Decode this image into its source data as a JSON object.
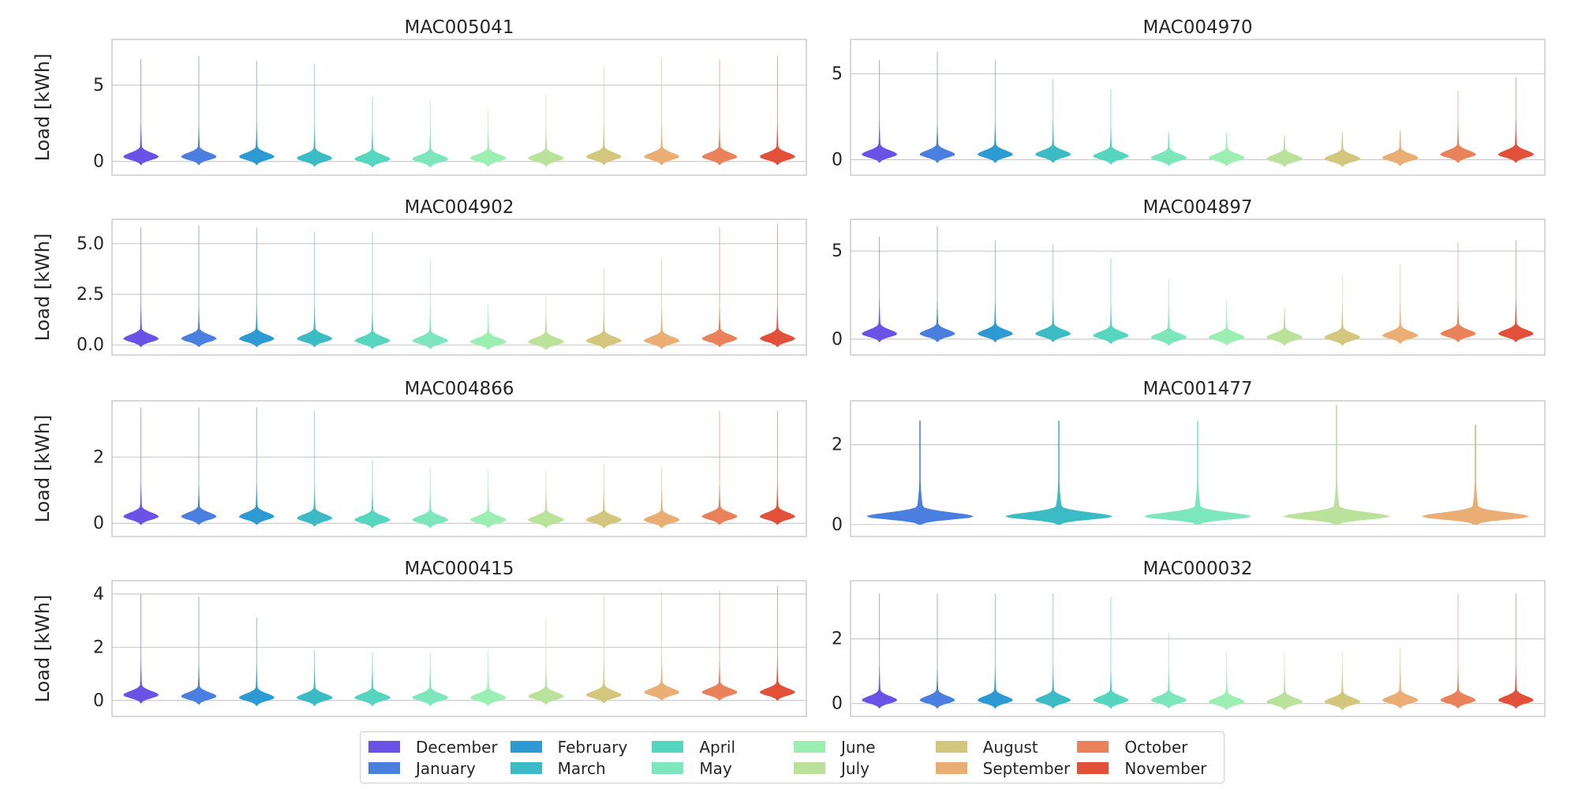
{
  "chart_data": [
    {
      "type": "violin",
      "title": "MAC005041",
      "ylabel": "Load [kWh]",
      "ylim": [
        -0.9,
        8.0
      ],
      "yticks": [
        0,
        5
      ],
      "ytick_labels": [
        "0",
        "5"
      ],
      "categories": [
        "December",
        "January",
        "February",
        "March",
        "April",
        "May",
        "June",
        "July",
        "August",
        "September",
        "October",
        "November"
      ],
      "max_values": [
        6.7,
        6.9,
        6.6,
        6.4,
        4.2,
        4.0,
        3.4,
        4.4,
        6.3,
        6.8,
        6.7,
        6.9
      ],
      "median_values": [
        0.3,
        0.3,
        0.3,
        0.2,
        0.15,
        0.15,
        0.2,
        0.2,
        0.3,
        0.3,
        0.3,
        0.3
      ]
    },
    {
      "type": "violin",
      "title": "MAC004970",
      "ylabel": "",
      "ylim": [
        -0.9,
        7.0
      ],
      "yticks": [
        0,
        5
      ],
      "ytick_labels": [
        "0",
        "5"
      ],
      "categories": [
        "December",
        "January",
        "February",
        "March",
        "April",
        "May",
        "June",
        "July",
        "August",
        "September",
        "October",
        "November"
      ],
      "max_values": [
        5.8,
        6.3,
        5.8,
        4.7,
        4.1,
        1.6,
        1.6,
        1.4,
        1.6,
        1.7,
        4.0,
        4.8
      ],
      "median_values": [
        0.3,
        0.3,
        0.3,
        0.3,
        0.2,
        0.1,
        0.1,
        0.05,
        0.05,
        0.1,
        0.3,
        0.3
      ]
    },
    {
      "type": "violin",
      "title": "MAC004902",
      "ylabel": "Load [kWh]",
      "ylim": [
        -0.5,
        6.2
      ],
      "yticks": [
        0,
        2.5,
        5
      ],
      "ytick_labels": [
        "0.0",
        "2.5",
        "5.0"
      ],
      "categories": [
        "December",
        "January",
        "February",
        "March",
        "April",
        "May",
        "June",
        "July",
        "August",
        "September",
        "October",
        "November"
      ],
      "max_values": [
        5.8,
        5.9,
        5.8,
        5.6,
        5.6,
        4.2,
        2.0,
        2.4,
        3.8,
        4.2,
        5.8,
        6.0
      ],
      "median_values": [
        0.3,
        0.3,
        0.3,
        0.3,
        0.2,
        0.2,
        0.15,
        0.15,
        0.2,
        0.2,
        0.3,
        0.3
      ]
    },
    {
      "type": "violin",
      "title": "MAC004897",
      "ylabel": "",
      "ylim": [
        -0.9,
        6.8
      ],
      "yticks": [
        0,
        5
      ],
      "ytick_labels": [
        "0",
        "5"
      ],
      "categories": [
        "December",
        "January",
        "February",
        "March",
        "April",
        "May",
        "June",
        "July",
        "August",
        "September",
        "October",
        "November"
      ],
      "max_values": [
        5.8,
        6.4,
        5.6,
        5.4,
        4.6,
        3.4,
        2.2,
        1.8,
        3.6,
        4.2,
        5.5,
        5.6
      ],
      "median_values": [
        0.3,
        0.3,
        0.3,
        0.3,
        0.2,
        0.1,
        0.1,
        0.1,
        0.1,
        0.2,
        0.3,
        0.3
      ]
    },
    {
      "type": "violin",
      "title": "MAC004866",
      "ylabel": "Load [kWh]",
      "ylim": [
        -0.4,
        3.7
      ],
      "yticks": [
        0,
        2
      ],
      "ytick_labels": [
        "0",
        "2"
      ],
      "categories": [
        "December",
        "January",
        "February",
        "March",
        "April",
        "May",
        "June",
        "July",
        "August",
        "September",
        "October",
        "November"
      ],
      "max_values": [
        3.5,
        3.5,
        3.5,
        3.4,
        1.9,
        1.7,
        1.6,
        1.6,
        1.8,
        1.7,
        3.4,
        3.4
      ],
      "median_values": [
        0.2,
        0.2,
        0.2,
        0.15,
        0.1,
        0.1,
        0.1,
        0.1,
        0.1,
        0.1,
        0.2,
        0.2
      ]
    },
    {
      "type": "violin",
      "title": "MAC001477",
      "ylabel": "",
      "ylim": [
        -0.3,
        3.1
      ],
      "yticks": [
        0,
        2
      ],
      "ytick_labels": [
        "0",
        "2"
      ],
      "categories": [
        "January",
        "March",
        "May",
        "July",
        "September"
      ],
      "max_values": [
        2.6,
        2.6,
        2.6,
        3.0,
        2.5
      ],
      "median_values": [
        0.2,
        0.2,
        0.2,
        0.2,
        0.2
      ]
    },
    {
      "type": "violin",
      "title": "MAC000415",
      "ylabel": "Load [kWh]",
      "ylim": [
        -0.6,
        4.5
      ],
      "yticks": [
        0,
        2,
        4
      ],
      "ytick_labels": [
        "0",
        "2",
        "4"
      ],
      "categories": [
        "December",
        "January",
        "February",
        "March",
        "April",
        "May",
        "June",
        "July",
        "August",
        "September",
        "October",
        "November"
      ],
      "max_values": [
        4.0,
        3.9,
        3.1,
        1.9,
        1.8,
        1.8,
        1.9,
        3.1,
        4.0,
        4.1,
        4.1,
        4.3
      ],
      "median_values": [
        0.2,
        0.15,
        0.1,
        0.1,
        0.1,
        0.1,
        0.1,
        0.15,
        0.2,
        0.3,
        0.3,
        0.3
      ]
    },
    {
      "type": "violin",
      "title": "MAC000032",
      "ylabel": "",
      "ylim": [
        -0.4,
        3.8
      ],
      "yticks": [
        0,
        2
      ],
      "ytick_labels": [
        "0",
        "2"
      ],
      "categories": [
        "December",
        "January",
        "February",
        "March",
        "April",
        "May",
        "June",
        "July",
        "August",
        "September",
        "October",
        "November"
      ],
      "max_values": [
        3.4,
        3.4,
        3.4,
        3.4,
        3.3,
        2.2,
        1.6,
        1.6,
        1.6,
        1.7,
        3.4,
        3.4
      ],
      "median_values": [
        0.1,
        0.1,
        0.1,
        0.1,
        0.1,
        0.1,
        0.05,
        0.05,
        0.05,
        0.1,
        0.1,
        0.1
      ]
    }
  ],
  "legend": {
    "items": [
      "December",
      "January",
      "February",
      "March",
      "April",
      "May",
      "June",
      "July",
      "August",
      "September",
      "October",
      "November"
    ],
    "colors": {
      "December": "#6a52e7",
      "January": "#4b7fdf",
      "February": "#2e9ad4",
      "March": "#3dbbc4",
      "April": "#56d6be",
      "May": "#7ee6bd",
      "June": "#9cefb3",
      "July": "#bbe29a",
      "August": "#d3c77d",
      "September": "#eaae74",
      "October": "#e9825a",
      "November": "#e2503a"
    },
    "placement": "bottom-center"
  }
}
